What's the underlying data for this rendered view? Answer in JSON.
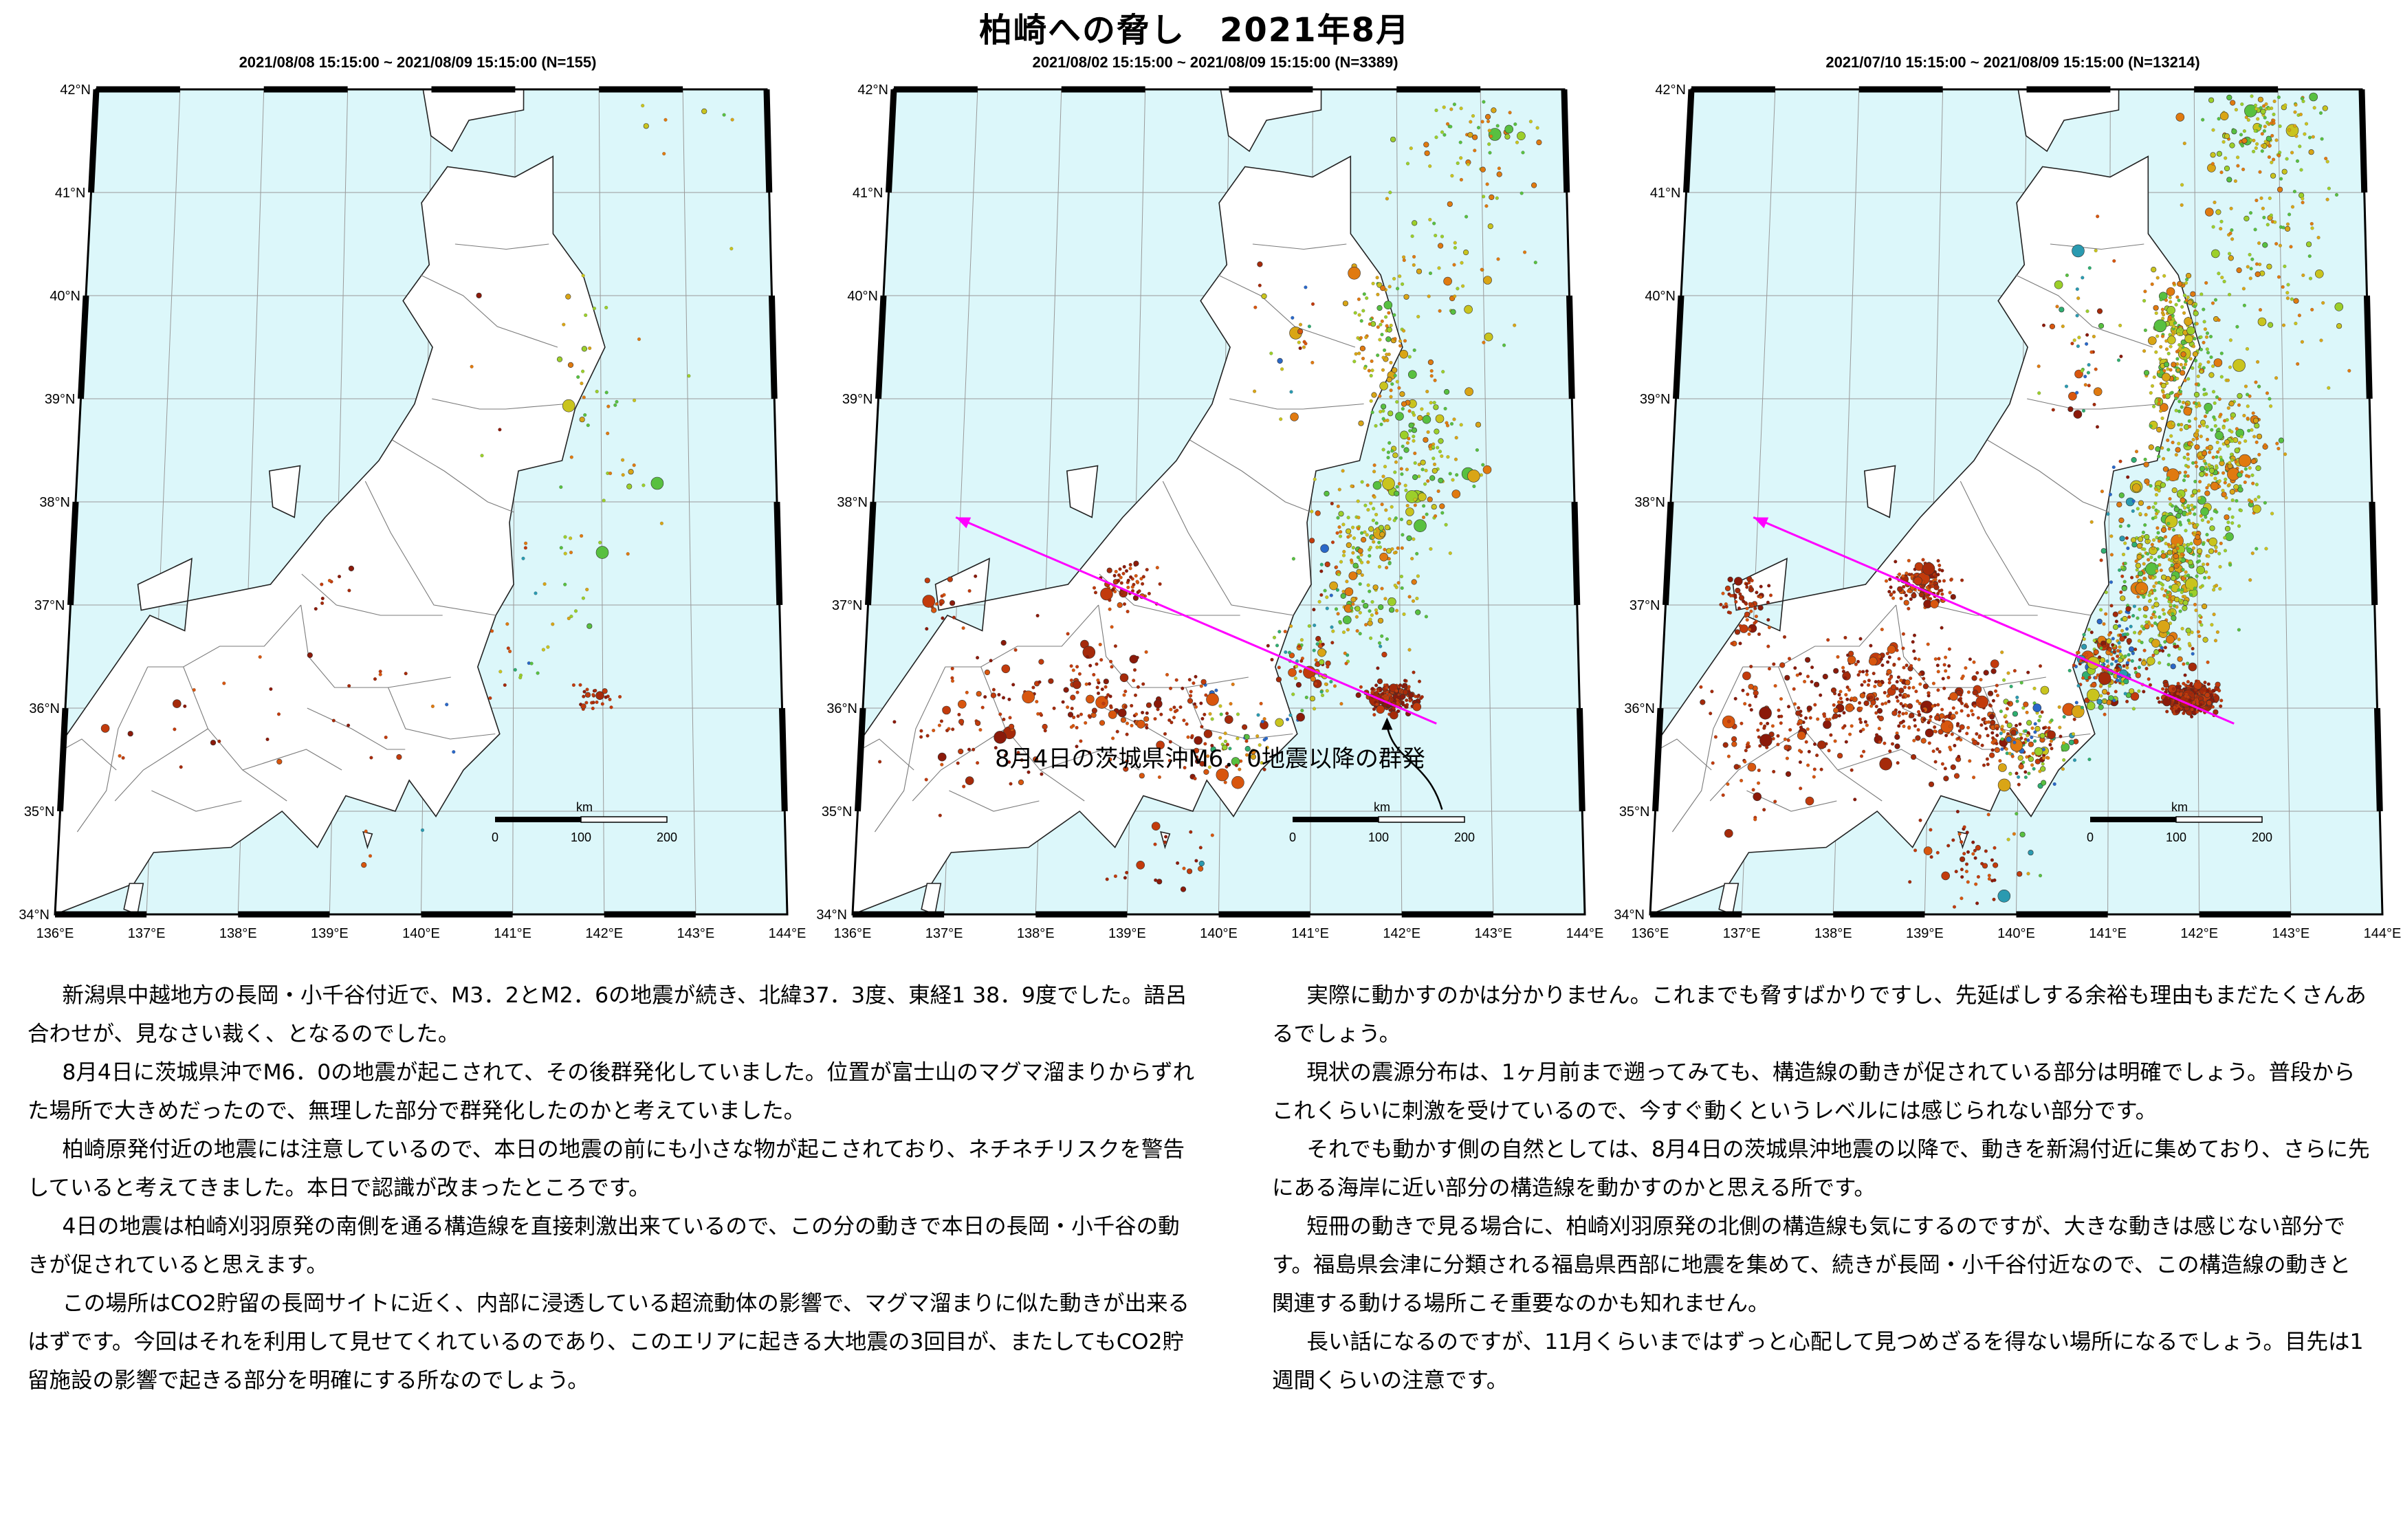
{
  "title": "柏崎への脅し　2021年8月",
  "colors": {
    "sea": "#dcf7fa",
    "land": "#ffffff",
    "arrow": "#ff00ff",
    "border": "#7a7a7a"
  },
  "maps": [
    {
      "period": "2021/08/08 15:15:00 ~ 2021/08/09 15:15:00 (N=155)",
      "events": 155,
      "density": "low",
      "has_arrow": false
    },
    {
      "period": "2021/08/02 15:15:00 ~ 2021/08/09 15:15:00 (N=3389)",
      "events": 3389,
      "density": "medium",
      "has_arrow": true
    },
    {
      "period": "2021/07/10 15:15:00 ~ 2021/08/09 15:15:00 (N=13214)",
      "events": 13214,
      "density": "high",
      "has_arrow": true
    }
  ],
  "lat_labels": [
    "42°N",
    "41°N",
    "40°N",
    "39°N",
    "38°N",
    "37°N",
    "36°N",
    "35°N",
    "34°N"
  ],
  "lon_labels": [
    "136°E",
    "137°E",
    "138°E",
    "139°E",
    "140°E",
    "141°E",
    "142°E",
    "143°E",
    "144°E"
  ],
  "scale": {
    "unit": "km",
    "ticks": [
      "0",
      "100",
      "200"
    ]
  },
  "annotation": "8月4日の茨城県沖M6．0地震以降の群発",
  "text_left": [
    "新潟県中越地方の長岡・小千谷付近で、M3．2とM2．6の地震が続き、北緯37．3度、東経1 38．9度でした。語呂合わせが、見なさい裁く、となるのでした。",
    "8月4日に茨城県沖でM6．0の地震が起こされて、その後群発化していました。位置が富士山のマグマ溜まりからずれた場所で大きめだったので、無理した部分で群発化したのかと考えていました。",
    "柏崎原発付近の地震には注意しているので、本日の地震の前にも小さな物が起こされており、ネチネチリスクを警告していると考えてきました。本日で認識が改まったところです。",
    "4日の地震は柏崎刈羽原発の南側を通る構造線を直接刺激出来ているので、この分の動きで本日の長岡・小千谷の動きが促されていると思えます。",
    "この場所はCO2貯留の長岡サイトに近く、内部に浸透している超流動体の影響で、マグマ溜まりに似た動きが出来るはずです。今回はそれを利用して見せてくれているのであり、このエリアに起きる大地震の3回目が、またしてもCO2貯留施設の影響で起きる部分を明確にする所なのでしょう。"
  ],
  "text_right": [
    "実際に動かすのかは分かりません。これまでも脅すばかりですし、先延ばしする余裕も理由もまだたくさんあるでしょう。",
    "現状の震源分布は、1ヶ月前まで遡ってみても、構造線の動きが促されている部分は明確でしょう。普段からこれくらいに刺激を受けているので、今すぐ動くというレベルには感じられない部分です。",
    "それでも動かす側の自然としては、8月4日の茨城県沖地震の以降で、動きを新潟付近に集めており、さらに先にある海岸に近い部分の構造線を動かすのかと思える所です。",
    "短冊の動きで見る場合に、柏崎刈羽原発の北側の構造線も気にするのですが、大きな動きは感じない部分です。福島県会津に分類される福島県西部に地震を集めて、続きが長岡・小千谷付近なので、この構造線の動きと関連する動ける場所こそ重要なのかも知れません。",
    "長い話になるのですが、11月くらいまではずっと心配して見つめざるを得ない場所になるでしょう。目先は1週間くらいの注意です。"
  ]
}
